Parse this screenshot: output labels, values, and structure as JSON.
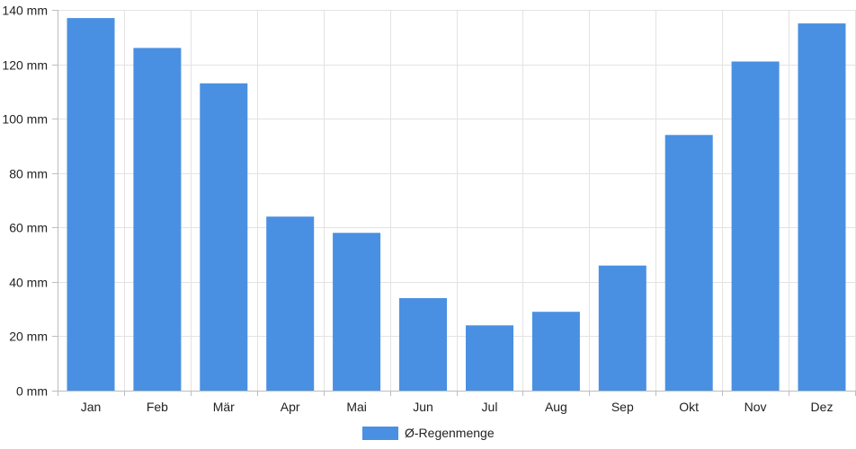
{
  "chart_data": {
    "type": "bar",
    "categories": [
      "Jan",
      "Feb",
      "Mär",
      "Apr",
      "Mai",
      "Jun",
      "Jul",
      "Aug",
      "Sep",
      "Okt",
      "Nov",
      "Dez"
    ],
    "series": [
      {
        "name": "Ø-Regenmenge",
        "values": [
          137,
          126,
          113,
          64,
          58,
          34,
          24,
          29,
          46,
          94,
          121,
          135
        ],
        "color": "#4a90e2"
      }
    ],
    "yticks": [
      "0 mm",
      "20 mm",
      "40 mm",
      "60 mm",
      "80 mm",
      "100 mm",
      "120 mm",
      "140 mm"
    ],
    "ylim": [
      0,
      140
    ],
    "grid": true,
    "legend_position": "bottom-center"
  },
  "colors": {
    "bar": "#4a90e2",
    "grid": "#e3e3e3",
    "axis": "#bdbdbd"
  }
}
